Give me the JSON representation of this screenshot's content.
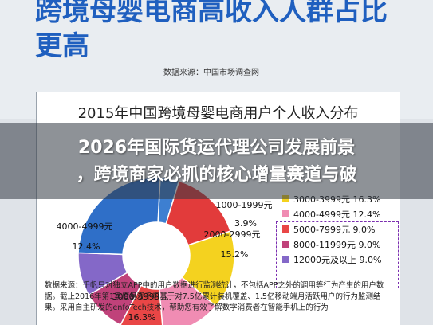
{
  "article": {
    "headline": "跨境母婴电商高收入人群占比更高",
    "source": "数据来源：中国市场调查网"
  },
  "chart_data": {
    "type": "pie",
    "title": "2015年中国跨境母婴电商用户个人收入分布",
    "categories": [
      "1000-1999元",
      "2000-2999元",
      "3000-3999元",
      "4000-4999元",
      "5000-7999元",
      "8000-11999元",
      "12000元及以上"
    ],
    "values": [
      3.9,
      15.2,
      16.3,
      12.4,
      9.0,
      9.0,
      9.0
    ],
    "value_labels": [
      "3.9%",
      "15.2%",
      "16.3%",
      "12.4%",
      "9.0%",
      "9.0%",
      "9.0%"
    ],
    "legend_labels": [
      "3000-3999元  16.3%",
      "4000-4999元  12.4%",
      "5000-7999元   9.0%",
      "8000-11999元  9.0%",
      "12000元及以上  9.0%"
    ],
    "legend_position": "right",
    "colors": [
      "#3d7fd1",
      "#e23b3b",
      "#f4d21f",
      "#f08cb3",
      "#e94646",
      "#c0427a",
      "#8468c8"
    ]
  },
  "footnote": "数据来源：千帆只对独立APP中的用户数据进行监测统计，不包括APP之外的调用等行为产生的用户数据。截止2016年第1季度易观千帆基于对7.5亿累计装机覆盖、1.5亿移动端月活跃用户的行为监测结果。采用自主研发的enfoTech技术，帮助您有效了解数字消费者在智能手机上的行为",
  "overlay": {
    "line1": "2026年国际货运代理公司发展前景",
    "line2": "，跨境商家必抓的核心增量赛道与破"
  }
}
